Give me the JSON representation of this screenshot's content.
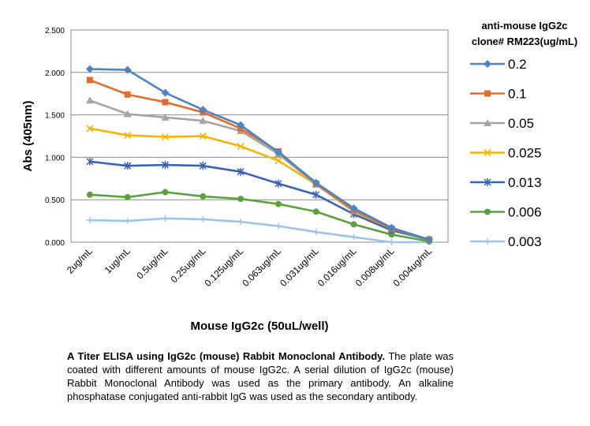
{
  "chart_data": {
    "type": "line",
    "title": "",
    "xlabel": "Mouse IgG2c (50uL/well)",
    "ylabel": "Abs (405nm)",
    "ylim": [
      0,
      2.5
    ],
    "yticks": [
      "0.000",
      "0.500",
      "1.000",
      "1.500",
      "2.000",
      "2.500"
    ],
    "grid": true,
    "legend_title": "anti-mouse IgG2c clone# RM223(ug/mL)",
    "legend_position": "right",
    "categories": [
      "2ug/mL",
      "1ug/mL",
      "0.5ug/mL",
      "0.25ug/mL",
      "0.125ug/mL",
      "0.063ug/mL",
      "0.031ug/mL",
      "0.016ug/mL",
      "0.008ug/mL",
      "0.004ug/mL"
    ],
    "series": [
      {
        "name": "0.2",
        "color": "#4a86c6",
        "marker": "diamond",
        "values": [
          2.04,
          2.03,
          1.76,
          1.56,
          1.38,
          1.06,
          0.7,
          0.4,
          0.17,
          0.03
        ]
      },
      {
        "name": "0.1",
        "color": "#e46c2a",
        "marker": "square",
        "values": [
          1.91,
          1.74,
          1.65,
          1.53,
          1.34,
          1.07,
          0.69,
          0.38,
          0.16,
          0.03
        ]
      },
      {
        "name": "0.05",
        "color": "#a5a5a5",
        "marker": "triangle",
        "values": [
          1.67,
          1.51,
          1.47,
          1.43,
          1.31,
          1.04,
          0.68,
          0.37,
          0.16,
          0.03
        ]
      },
      {
        "name": "0.025",
        "color": "#f4b400",
        "marker": "x",
        "values": [
          1.34,
          1.26,
          1.24,
          1.25,
          1.13,
          0.96,
          0.68,
          0.36,
          0.16,
          0.03
        ]
      },
      {
        "name": "0.013",
        "color": "#3a63b4",
        "marker": "star",
        "values": [
          0.95,
          0.9,
          0.91,
          0.9,
          0.83,
          0.69,
          0.56,
          0.33,
          0.14,
          0.03
        ]
      },
      {
        "name": "0.006",
        "color": "#5aa33a",
        "marker": "circle",
        "values": [
          0.56,
          0.53,
          0.59,
          0.54,
          0.51,
          0.45,
          0.36,
          0.21,
          0.09,
          0.01
        ]
      },
      {
        "name": "0.003",
        "color": "#9dc3e6",
        "marker": "plus",
        "values": [
          0.26,
          0.25,
          0.28,
          0.27,
          0.24,
          0.19,
          0.12,
          0.06,
          0.0,
          0.0
        ]
      }
    ]
  },
  "caption": {
    "bold": "A Titer ELISA using IgG2c (mouse) Rabbit Monoclonal Antibody.",
    "text": " The plate was coated with different amounts of mouse IgG2c. A serial dilution of IgG2c (mouse) Rabbit Monoclonal Antibody was used as the primary antibody. An alkaline phosphatase conjugated anti-rabbit IgG was used as the secondary antibody."
  }
}
